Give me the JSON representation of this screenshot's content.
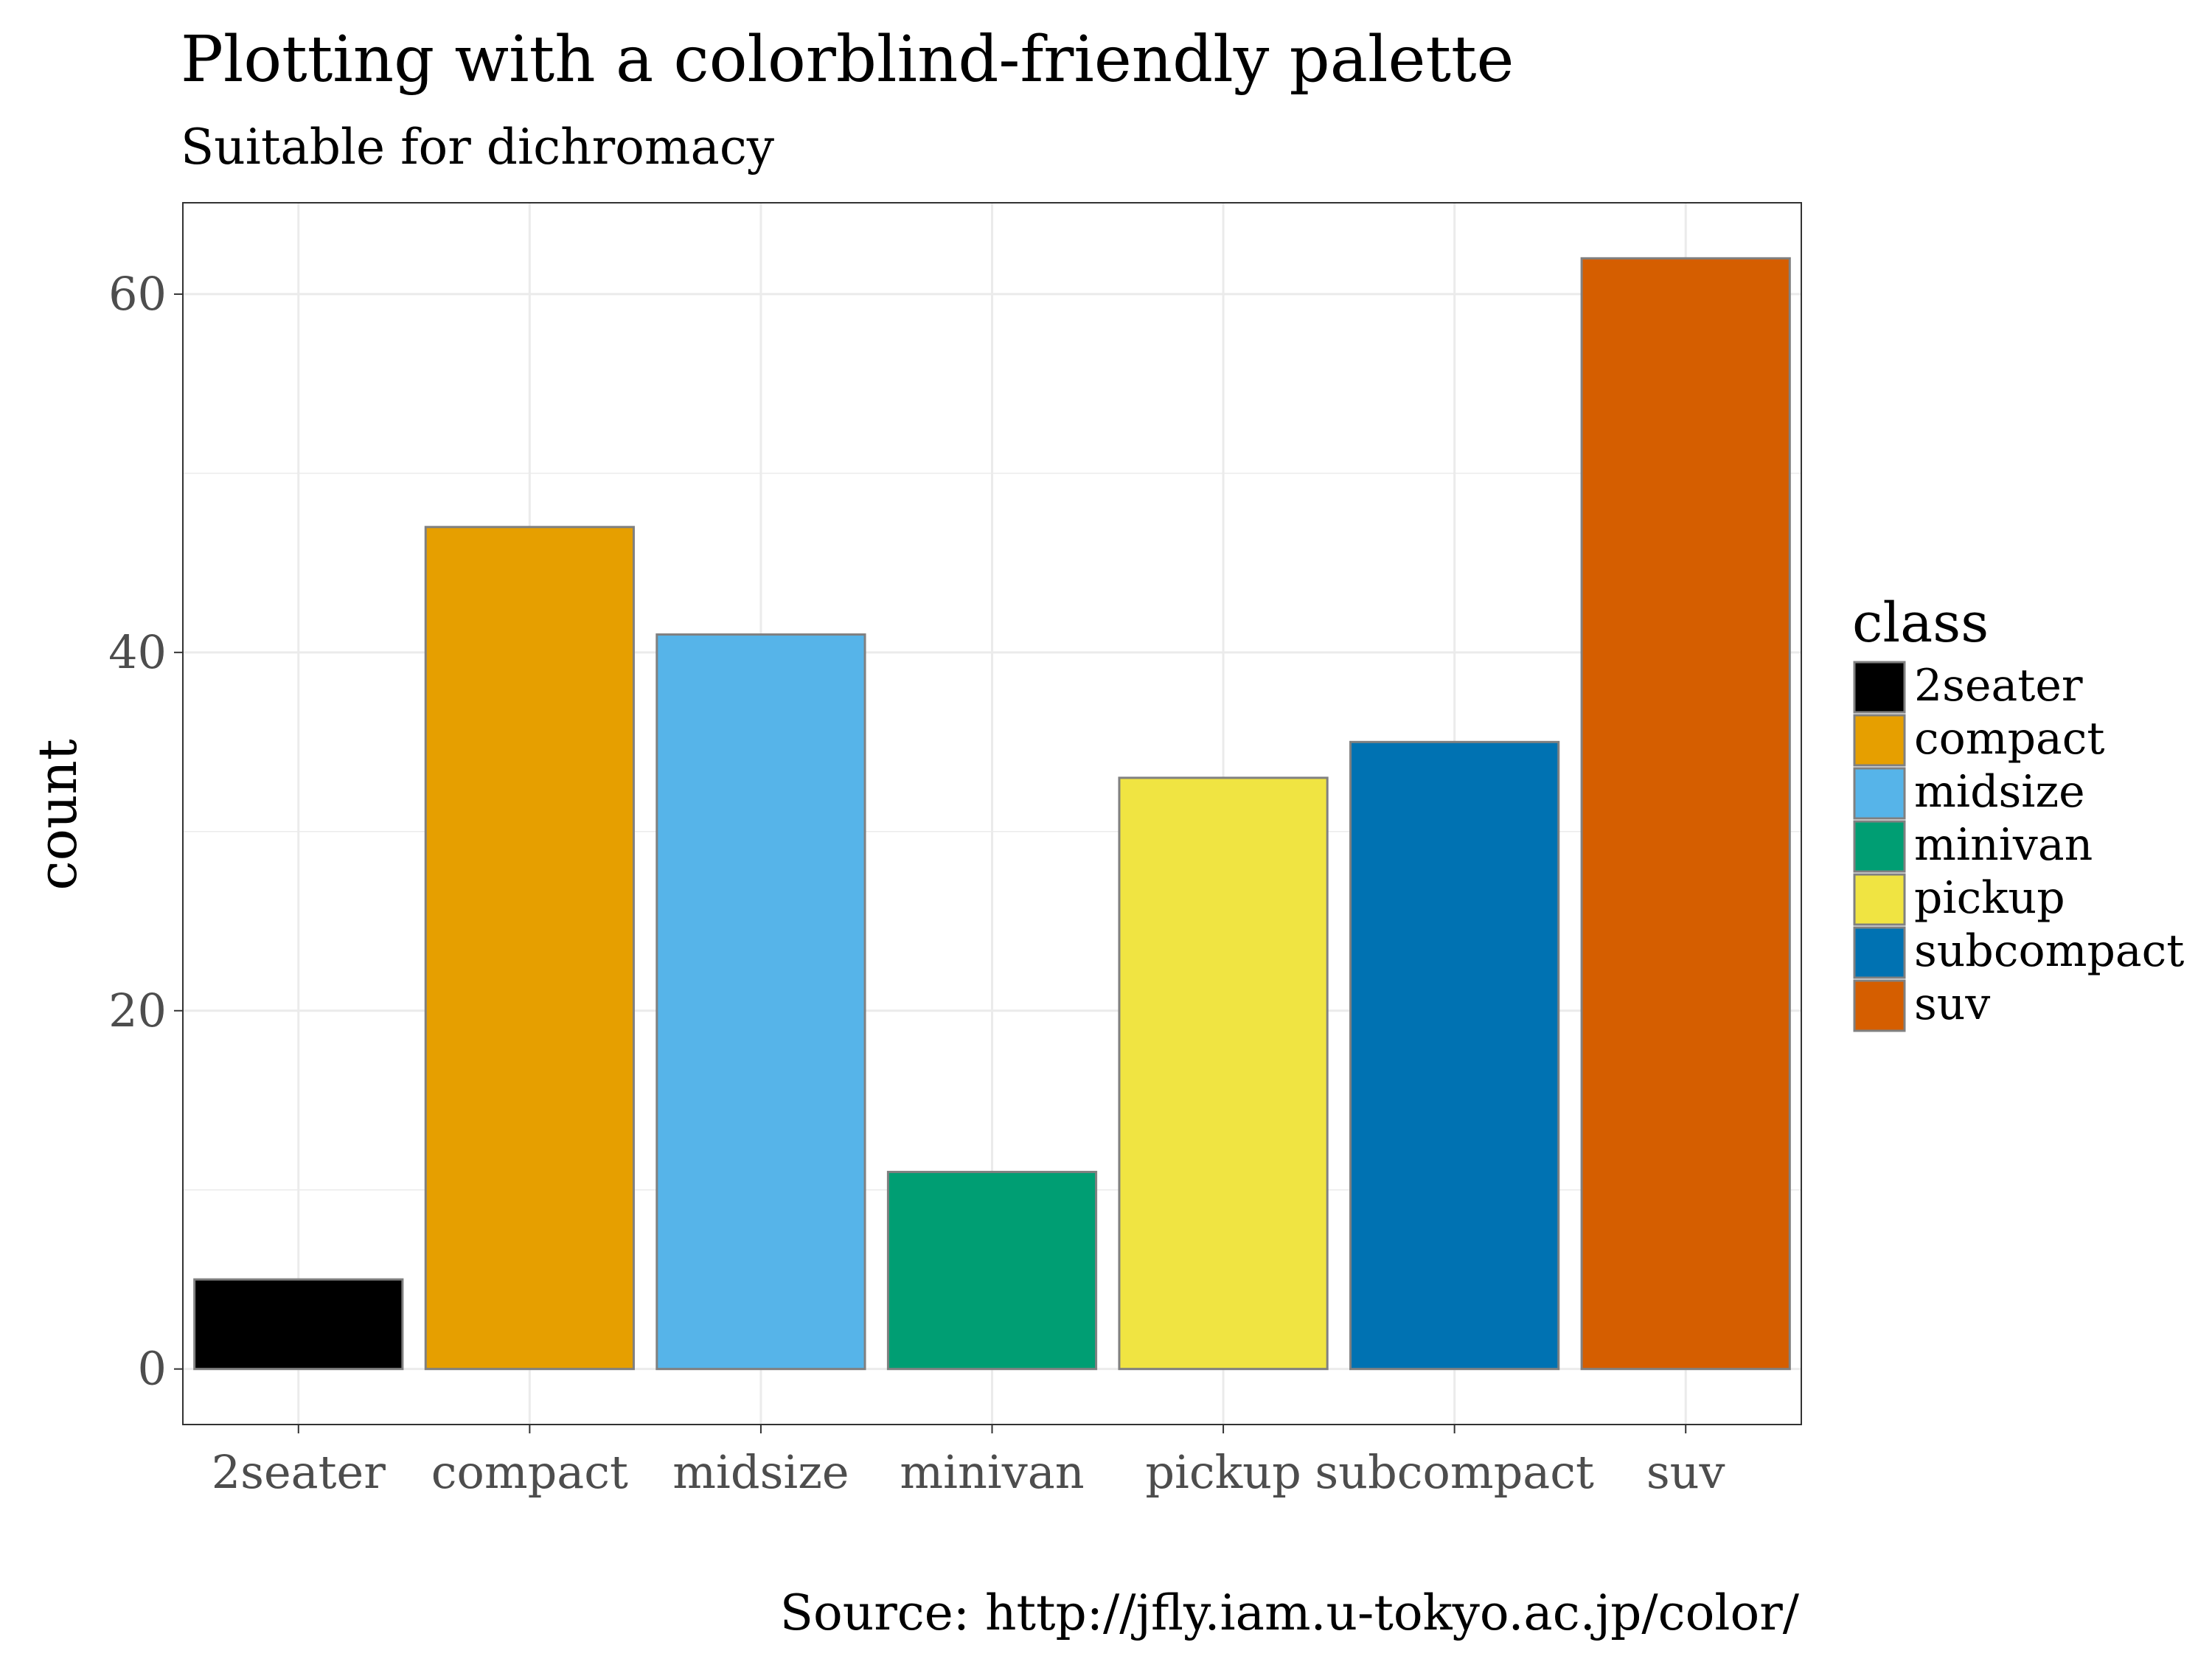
{
  "chart_data": {
    "type": "bar",
    "title": "Plotting with a colorblind-friendly palette",
    "subtitle": "Suitable for dichromacy",
    "caption": "Source: http://jfly.iam.u-tokyo.ac.jp/color/",
    "xlabel": "",
    "ylabel": "count",
    "categories": [
      "2seater",
      "compact",
      "midsize",
      "minivan",
      "pickup",
      "subcompact",
      "suv"
    ],
    "values": [
      5,
      47,
      41,
      11,
      33,
      35,
      62
    ],
    "colors": [
      "#000000",
      "#E69F00",
      "#56B4E9",
      "#009E73",
      "#F0E442",
      "#0072B2",
      "#D55E00"
    ],
    "bar_outline": "#808080",
    "yticks": [
      0,
      20,
      40,
      60
    ],
    "ylim": [
      -3.1,
      65.1
    ],
    "grid": true,
    "legend": {
      "title": "class",
      "placement": "right",
      "entries": [
        "2seater",
        "compact",
        "midsize",
        "minivan",
        "pickup",
        "subcompact",
        "suv"
      ]
    }
  }
}
